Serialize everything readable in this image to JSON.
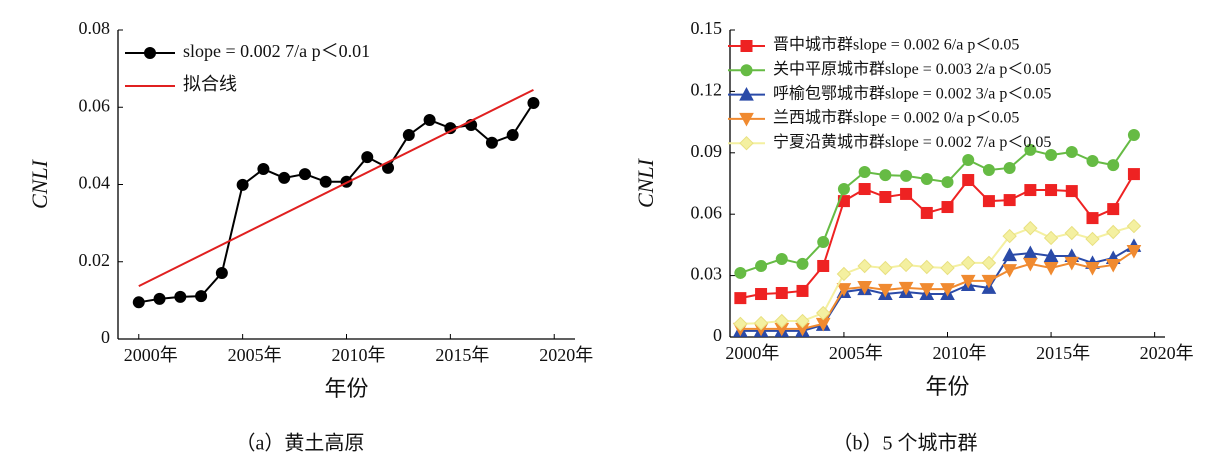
{
  "chart_data": [
    {
      "type": "line",
      "caption": "（a）黄土高原",
      "xlabel": "年份",
      "ylabel": "CNLI",
      "x": [
        2000,
        2001,
        2002,
        2003,
        2004,
        2005,
        2006,
        2007,
        2008,
        2009,
        2010,
        2011,
        2012,
        2013,
        2014,
        2015,
        2016,
        2017,
        2018,
        2019
      ],
      "xlim": [
        1999,
        2021
      ],
      "xticks": [
        {
          "value": 2000,
          "label": "2000年"
        },
        {
          "value": 2005,
          "label": "2005年"
        },
        {
          "value": 2010,
          "label": "2010年"
        },
        {
          "value": 2015,
          "label": "2015年"
        },
        {
          "value": 2020,
          "label": "2020年"
        }
      ],
      "ylim": [
        0,
        0.08
      ],
      "yticks": [
        0,
        0.02,
        0.04,
        0.06,
        0.08
      ],
      "legend": "upper left",
      "series": [
        {
          "name": "slope = 0.002 7/a  p＜0.01",
          "color": "#000000",
          "marker": "circle",
          "values": [
            0.0095,
            0.0104,
            0.0109,
            0.0111,
            0.0171,
            0.0399,
            0.044,
            0.0417,
            0.0427,
            0.0407,
            0.0407,
            0.0471,
            0.0443,
            0.0528,
            0.0567,
            0.0546,
            0.0554,
            0.0508,
            0.0528,
            0.0611
          ]
        },
        {
          "name": "拟合线",
          "color": "#e02020",
          "x": [
            2000,
            2019
          ],
          "values": [
            0.0137,
            0.0645
          ]
        }
      ]
    },
    {
      "type": "line",
      "caption": "（b）5 个城市群",
      "xlabel": "年份",
      "ylabel": "CNLI",
      "x": [
        2000,
        2001,
        2002,
        2003,
        2004,
        2005,
        2006,
        2007,
        2008,
        2009,
        2010,
        2011,
        2012,
        2013,
        2014,
        2015,
        2016,
        2017,
        2018,
        2019
      ],
      "xlim": [
        1999.5,
        2020.5
      ],
      "xticks": [
        {
          "value": 2000,
          "label": "2000年"
        },
        {
          "value": 2005,
          "label": "2005年"
        },
        {
          "value": 2010,
          "label": "2010年"
        },
        {
          "value": 2015,
          "label": "2015年"
        },
        {
          "value": 2020,
          "label": "2020年"
        }
      ],
      "ylim": [
        0,
        0.15
      ],
      "yticks": [
        0,
        0.03,
        0.06,
        0.09,
        0.12,
        0.15
      ],
      "legend": "upper left",
      "series": [
        {
          "name": "晋中城市群slope = 0.002 6/a  p＜0.05",
          "color": "#ee2222",
          "marker": "square",
          "values": [
            0.019,
            0.021,
            0.0215,
            0.0225,
            0.0347,
            0.0664,
            0.0723,
            0.0684,
            0.0699,
            0.0606,
            0.0635,
            0.0767,
            0.0664,
            0.0669,
            0.0718,
            0.0718,
            0.0713,
            0.0581,
            0.0625,
            0.0796
          ]
        },
        {
          "name": "关中平原城市群slope = 0.003 2/a  p＜0.05",
          "color": "#66bb44",
          "marker": "circle",
          "values": [
            0.0313,
            0.0347,
            0.0381,
            0.0357,
            0.0464,
            0.0723,
            0.0806,
            0.0791,
            0.0787,
            0.0772,
            0.0757,
            0.0865,
            0.0816,
            0.0826,
            0.0914,
            0.0889,
            0.0904,
            0.086,
            0.084,
            0.0987
          ]
        },
        {
          "name": "呼榆包鄂城市群slope = 0.002 3/a  p＜0.05",
          "color": "#2a4aa8",
          "marker": "triangle-up",
          "values": [
            0.003,
            0.003,
            0.003,
            0.003,
            0.0059,
            0.022,
            0.0234,
            0.021,
            0.022,
            0.021,
            0.021,
            0.0254,
            0.024,
            0.04,
            0.041,
            0.0396,
            0.0396,
            0.0362,
            0.0386,
            0.0445
          ]
        },
        {
          "name": "兰西城市群slope = 0.002 0/a  p＜0.05",
          "color": "#f08a30",
          "marker": "triangle-down",
          "values": [
            0.004,
            0.004,
            0.004,
            0.004,
            0.0064,
            0.0234,
            0.0244,
            0.023,
            0.024,
            0.0234,
            0.0234,
            0.0274,
            0.0274,
            0.0327,
            0.0357,
            0.0337,
            0.0362,
            0.0337,
            0.0352,
            0.042
          ]
        },
        {
          "name": "宁夏沿黄城市群slope = 0.002 7/a  p＜0.05",
          "color": "#f4f0a0",
          "marker": "diamond",
          "values": [
            0.0064,
            0.0068,
            0.0078,
            0.0078,
            0.0117,
            0.0308,
            0.0347,
            0.0337,
            0.0352,
            0.0342,
            0.0337,
            0.0362,
            0.0362,
            0.0493,
            0.0532,
            0.0484,
            0.0508,
            0.0479,
            0.0513,
            0.0542
          ]
        }
      ]
    }
  ]
}
